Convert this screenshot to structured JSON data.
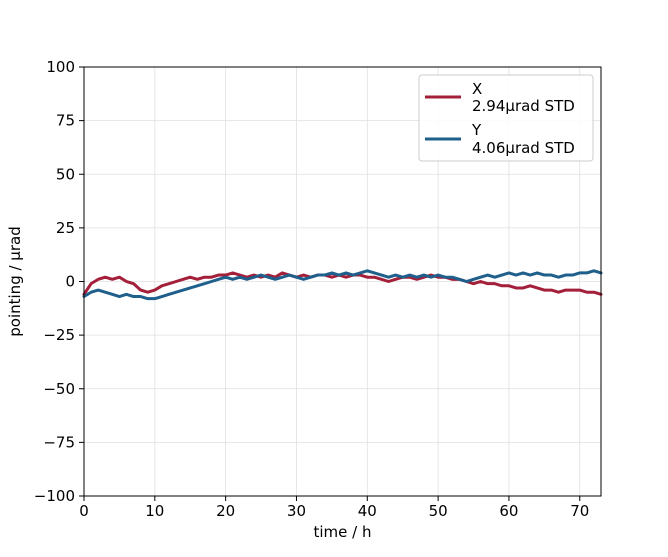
{
  "chart_data": {
    "type": "line",
    "title": "",
    "xlabel": "time / h",
    "ylabel": "pointing / µrad",
    "xlim": [
      0,
      73
    ],
    "ylim": [
      -100,
      100
    ],
    "xticks": [
      "0",
      "10",
      "20",
      "30",
      "40",
      "50",
      "60",
      "70"
    ],
    "yticks": [
      "100",
      "75",
      "50",
      "25",
      "0",
      "−25",
      "−50",
      "−75",
      "−100"
    ],
    "grid": true,
    "legend_position": "top-right",
    "series": [
      {
        "name": "X",
        "std_label": "2.94µrad STD",
        "color": "#a31f3a",
        "x": [
          0,
          1,
          2,
          3,
          4,
          5,
          6,
          7,
          8,
          9,
          10,
          11,
          12,
          13,
          14,
          15,
          16,
          17,
          18,
          19,
          20,
          21,
          22,
          23,
          24,
          25,
          26,
          27,
          28,
          29,
          30,
          31,
          32,
          33,
          34,
          35,
          36,
          37,
          38,
          39,
          40,
          41,
          42,
          43,
          44,
          45,
          46,
          47,
          48,
          49,
          50,
          51,
          52,
          53,
          54,
          55,
          56,
          57,
          58,
          59,
          60,
          61,
          62,
          63,
          64,
          65,
          66,
          67,
          68,
          69,
          70,
          71,
          72,
          73
        ],
        "y": [
          -6,
          -1,
          1,
          2,
          1,
          2,
          0,
          -1,
          -4,
          -5,
          -4,
          -2,
          -1,
          0,
          1,
          2,
          1,
          2,
          2,
          3,
          3,
          4,
          3,
          2,
          3,
          2,
          3,
          2,
          4,
          3,
          2,
          3,
          2,
          3,
          3,
          2,
          3,
          2,
          3,
          3,
          2,
          2,
          1,
          0,
          1,
          2,
          2,
          1,
          2,
          3,
          2,
          2,
          1,
          1,
          0,
          -1,
          0,
          -1,
          -1,
          -2,
          -2,
          -3,
          -3,
          -2,
          -3,
          -4,
          -4,
          -5,
          -4,
          -4,
          -4,
          -5,
          -5,
          -6
        ]
      },
      {
        "name": "Y",
        "std_label": "4.06µrad STD",
        "color": "#1f5f8b",
        "x": [
          0,
          1,
          2,
          3,
          4,
          5,
          6,
          7,
          8,
          9,
          10,
          11,
          12,
          13,
          14,
          15,
          16,
          17,
          18,
          19,
          20,
          21,
          22,
          23,
          24,
          25,
          26,
          27,
          28,
          29,
          30,
          31,
          32,
          33,
          34,
          35,
          36,
          37,
          38,
          39,
          40,
          41,
          42,
          43,
          44,
          45,
          46,
          47,
          48,
          49,
          50,
          51,
          52,
          53,
          54,
          55,
          56,
          57,
          58,
          59,
          60,
          61,
          62,
          63,
          64,
          65,
          66,
          67,
          68,
          69,
          70,
          71,
          72,
          73
        ],
        "y": [
          -7,
          -5,
          -4,
          -5,
          -6,
          -7,
          -6,
          -7,
          -7,
          -8,
          -8,
          -7,
          -6,
          -5,
          -4,
          -3,
          -2,
          -1,
          0,
          1,
          2,
          1,
          2,
          1,
          2,
          3,
          2,
          1,
          2,
          3,
          2,
          1,
          2,
          3,
          3,
          4,
          3,
          4,
          3,
          4,
          5,
          4,
          3,
          2,
          3,
          2,
          3,
          2,
          3,
          2,
          3,
          2,
          2,
          1,
          0,
          1,
          2,
          3,
          2,
          3,
          4,
          3,
          4,
          3,
          4,
          3,
          3,
          2,
          3,
          3,
          4,
          4,
          5,
          4
        ]
      }
    ]
  }
}
